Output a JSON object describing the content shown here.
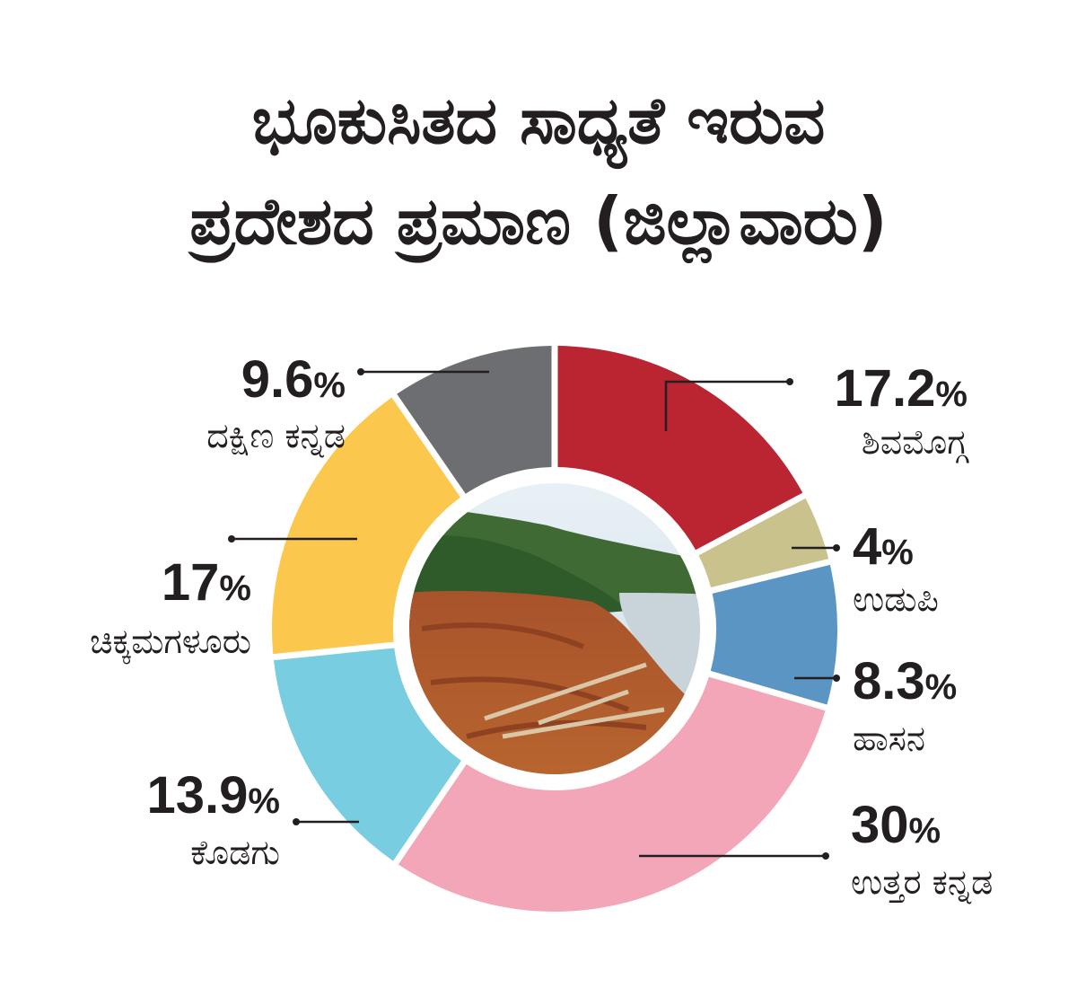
{
  "title": {
    "line1": "ಭೂಕುಸಿತದ ಸಾಧ್ಯತೆ ಇರುವ",
    "line2": "ಪ್ರದೇಶದ ಪ್ರಮಾಣ (ಜಿಲ್ಲಾವಾರು)"
  },
  "chart_data": {
    "type": "pie",
    "title": "ಭೂಕುಸಿತದ ಸಾಧ್ಯತೆ ಇರುವ ಪ್ರದೇಶದ ಪ್ರಮಾಣ (ಜಿಲ್ಲಾವಾರು)",
    "unit": "%",
    "donut": true,
    "center_image": "landslide-riverbank-photo",
    "slices": [
      {
        "label": "ಶಿವಮೊಗ್ಗ",
        "value": 17.2,
        "display": "17.2",
        "color": "#bb2532"
      },
      {
        "label": "ಉಡುಪಿ",
        "value": 4,
        "display": "4",
        "color": "#c9c28c"
      },
      {
        "label": "ಹಾಸನ",
        "value": 8.3,
        "display": "8.3",
        "color": "#5a95c4"
      },
      {
        "label": "ಉತ್ತರ ಕನ್ನಡ",
        "value": 30,
        "display": "30",
        "color": "#f3a6b8"
      },
      {
        "label": "ಕೊಡಗು",
        "value": 13.9,
        "display": "13.9",
        "color": "#78cde0"
      },
      {
        "label": "ಚಿಕ್ಕಮಗಳೂರು",
        "value": 17,
        "display": "17",
        "color": "#fbc74c"
      },
      {
        "label": "ದಕ್ಷಿಣ ಕನ್ನಡ",
        "value": 9.6,
        "display": "9.6",
        "color": "#6d6e71"
      }
    ]
  }
}
